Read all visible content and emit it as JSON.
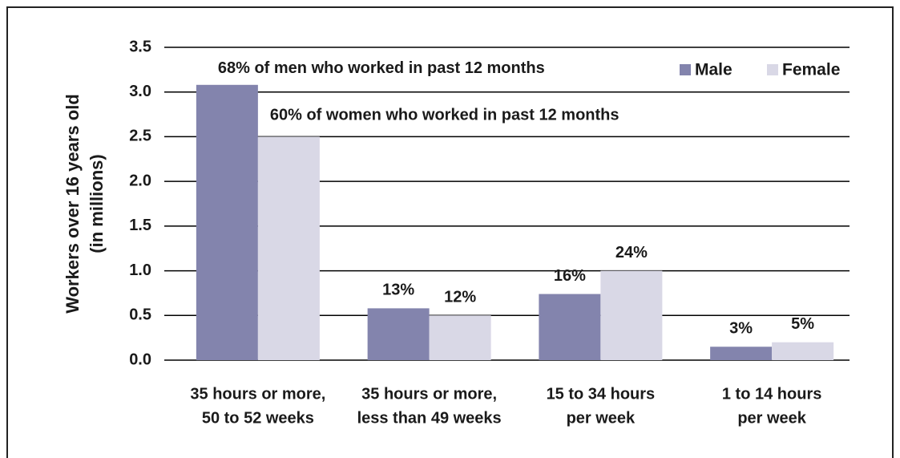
{
  "chart_data": {
    "type": "bar",
    "ylabel": [
      "Workers over 16 years old",
      "(in millions)"
    ],
    "categories": [
      [
        "35 hours or more,",
        "50 to 52 weeks"
      ],
      [
        "35 hours or more,",
        "less than 49 weeks"
      ],
      [
        "15 to 34 hours",
        "per week"
      ],
      [
        "1 to 14 hours",
        "per week"
      ]
    ],
    "series": [
      {
        "name": "Male",
        "color": "#8384ad",
        "values": [
          3.08,
          0.58,
          0.74,
          0.15
        ],
        "labels": [
          "68% of men who worked in past 12 months",
          "13%",
          "16%",
          "3%"
        ]
      },
      {
        "name": "Female",
        "color": "#d9d8e6",
        "values": [
          2.5,
          0.5,
          1.0,
          0.2
        ],
        "labels": [
          "60% of women who worked in past 12 months",
          "12%",
          "24%",
          "5%"
        ]
      }
    ],
    "ylim": [
      0,
      3.5
    ],
    "yticks": [
      {
        "value": 0,
        "label": "0.0"
      },
      0.5,
      {
        "value": 1,
        "label": "1.0"
      },
      1.5,
      {
        "value": 2,
        "label": "2.0"
      },
      2.5,
      {
        "value": 3,
        "label": "3.0"
      },
      3.5
    ],
    "grid": true,
    "legend": "top-right"
  }
}
